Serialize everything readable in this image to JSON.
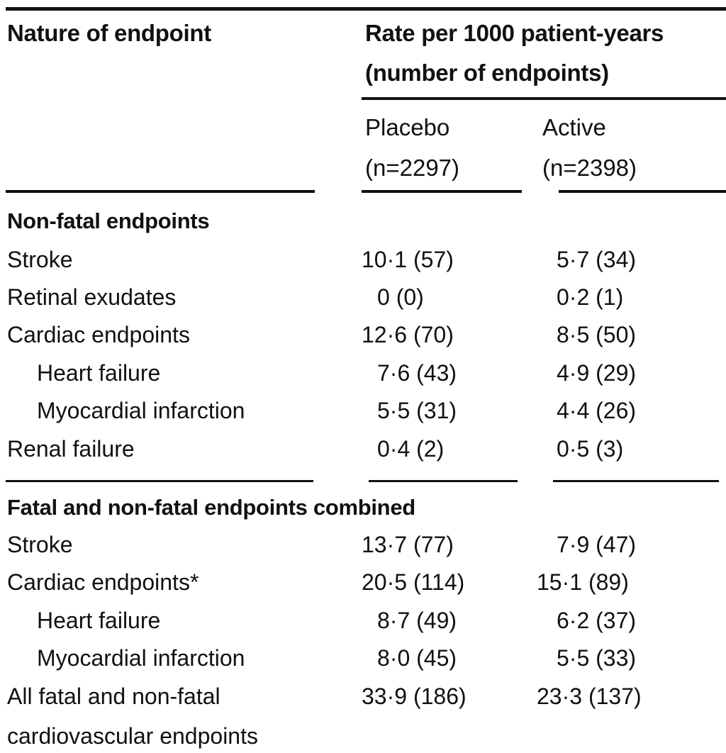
{
  "header": {
    "col0": "Nature of endpoint",
    "group_line1": "Rate per 1000 patient-years",
    "group_line2": "(number of endpoints)",
    "placebo_label": "Placebo",
    "placebo_n": "(n=2297)",
    "active_label": "Active",
    "active_n": "(n=2398)"
  },
  "sections": [
    {
      "title": "Non-fatal endpoints",
      "rows": [
        {
          "label": "Stroke",
          "placebo": "10·1 (57)",
          "active": "5·7 (34)"
        },
        {
          "label": "Retinal exudates",
          "placebo": "0 (0)",
          "active": "0·2 (1)"
        },
        {
          "label": "Cardiac endpoints",
          "placebo": "12·6 (70)",
          "active": "8·5 (50)"
        },
        {
          "label": "Heart failure",
          "placebo": "7·6 (43)",
          "active": "4·9 (29)"
        },
        {
          "label": "Myocardial infarction",
          "placebo": "5·5 (31)",
          "active": "4·4 (26)"
        },
        {
          "label": "Renal failure",
          "placebo": "0·4 (2)",
          "active": "0·5 (3)"
        }
      ]
    },
    {
      "title": "Fatal and non-fatal endpoints combined",
      "rows": [
        {
          "label": "Stroke",
          "placebo": "13·7 (77)",
          "active": "7·9 (47)"
        },
        {
          "label": "Cardiac endpoints*",
          "placebo": "20·5 (114)",
          "active": "15·1 (89)"
        },
        {
          "label": "Heart failure",
          "placebo": "8·7 (49)",
          "active": "6·2 (37)"
        },
        {
          "label": "Myocardial infarction",
          "placebo": "8·0 (45)",
          "active": "5·5 (33)"
        },
        {
          "label": "All fatal and non-fatal",
          "label_line2": "cardiovascular endpoints",
          "placebo": "33·9 (186)",
          "active": "23·3 (137)"
        }
      ]
    }
  ]
}
